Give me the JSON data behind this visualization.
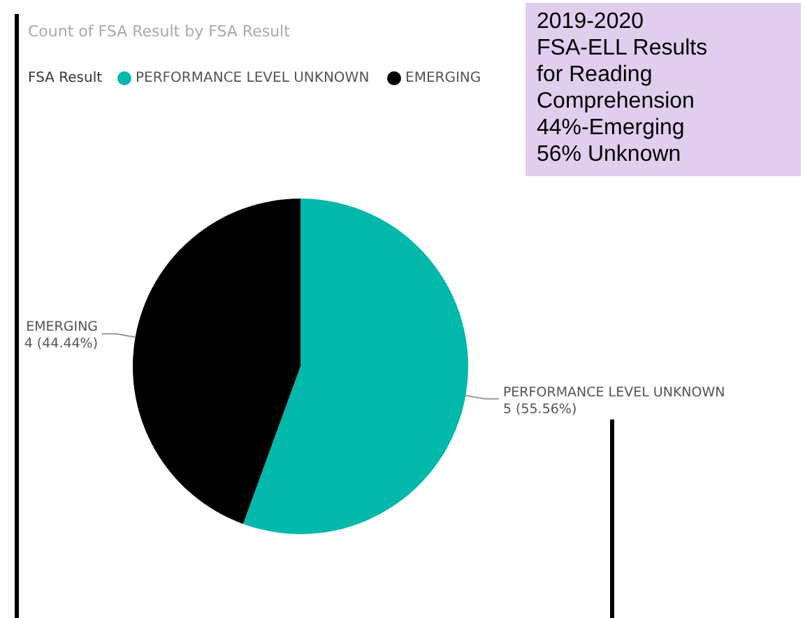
{
  "chart_data": {
    "type": "pie",
    "title": "Count of FSA Result by FSA Result",
    "legend_title": "FSA Result",
    "legend": "top left",
    "categories": [
      "PERFORMANCE LEVEL UNKNOWN",
      "EMERGING"
    ],
    "values": [
      5,
      4
    ],
    "colors": [
      "#01b8aa",
      "#000000"
    ],
    "value_labels": [
      "5 (55.56%)",
      "4 (44.44%)"
    ],
    "annotations": [
      "2019-2020\nFSA-ELL Results\nfor Reading\nComprehension\n44%-Emerging\n56% Unknown"
    ]
  }
}
